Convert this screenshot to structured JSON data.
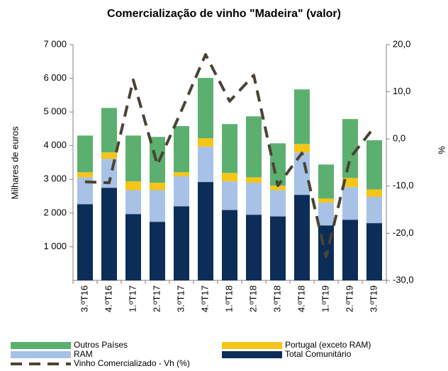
{
  "chart_data": {
    "type": "bar",
    "stacked": true,
    "title": "Comercialização de vinho \"Madeira\" (valor)",
    "y_label": "Milhares de euros",
    "y2_label": "%",
    "categories": [
      "3.ºT16",
      "4.ºT16",
      "1.ºT17",
      "2.ºT17",
      "3.ºT17",
      "4.ºT17",
      "1.ºT18",
      "2.ºT18",
      "3.ºT18",
      "4.ºT18",
      "1.ºT19",
      "2.ºT19",
      "3.ºT19"
    ],
    "series": [
      {
        "name": "Outros Países",
        "color": "#5bb070",
        "values": [
          1090,
          1320,
          1360,
          1360,
          1370,
          1790,
          1450,
          1810,
          1260,
          1620,
          1010,
          1750,
          1460
        ]
      },
      {
        "name": "Portugal (exceto RAM)",
        "color": "#f5c518",
        "values": [
          150,
          190,
          260,
          220,
          120,
          250,
          250,
          160,
          130,
          250,
          120,
          270,
          220
        ]
      },
      {
        "name": "RAM",
        "color": "#a7c2e6",
        "values": [
          800,
          860,
          710,
          940,
          890,
          1050,
          850,
          950,
          780,
          1260,
          680,
          970,
          780
        ]
      },
      {
        "name": "Total Comunitário",
        "color": "#0b2d58",
        "values": [
          2260,
          2750,
          1970,
          1740,
          2200,
          2920,
          2090,
          1950,
          1900,
          2540,
          1630,
          1800,
          1700
        ]
      },
      {
        "name": "Vinho Comercializado - Vh (%)",
        "color": "#4a4334",
        "type": "line",
        "axis": "y2",
        "values": [
          -9.1,
          -9.3,
          12.5,
          -5.5,
          6,
          17.9,
          8,
          13.5,
          -9.9,
          -3,
          -25,
          -4,
          2.5
        ]
      }
    ],
    "ylim": [
      0,
      7000
    ],
    "yticks": [
      {
        "value": 1000,
        "label": "1 000"
      },
      {
        "value": 2000,
        "label": "2 000"
      },
      {
        "value": 3000,
        "label": "3 000"
      },
      {
        "value": 4000,
        "label": "4 000"
      },
      {
        "value": 5000,
        "label": "5 000"
      },
      {
        "value": 6000,
        "label": "6 000"
      },
      {
        "value": 7000,
        "label": "7 000"
      }
    ],
    "y2lim": [
      -30,
      20
    ],
    "y2ticks": [
      {
        "value": -30,
        "label": "-30,0"
      },
      {
        "value": -20,
        "label": "-20,0"
      },
      {
        "value": -10,
        "label": "-10,0"
      },
      {
        "value": 0,
        "label": "0,0"
      },
      {
        "value": 10,
        "label": "10,0"
      },
      {
        "value": 20,
        "label": "20,0"
      }
    ],
    "grid": false,
    "legend": "bottom"
  }
}
